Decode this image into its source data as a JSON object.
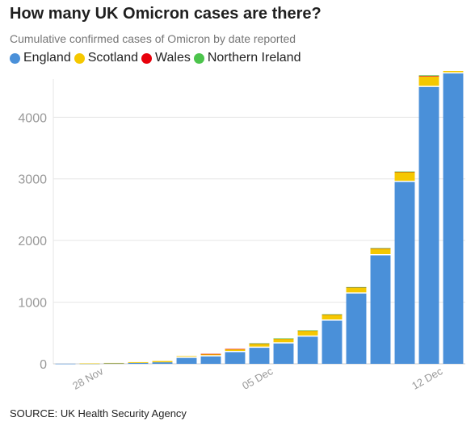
{
  "title": "How many UK Omicron cases are there?",
  "subtitle": "Cumulative confirmed cases of Omicron by date reported",
  "source": "SOURCE: UK Health Security Agency",
  "colors": {
    "England": "#4a90d9",
    "Scotland": "#f5c800",
    "Wales": "#e8000b",
    "Northern Ireland": "#4cc44c",
    "grid": "#e6e6e6"
  },
  "chart_data": {
    "type": "bar",
    "stacked": true,
    "categories": [
      "2021-11-27",
      "2021-11-28",
      "2021-11-29",
      "2021-11-30",
      "2021-12-01",
      "2021-12-02",
      "2021-12-03",
      "2021-12-04",
      "2021-12-05",
      "2021-12-06",
      "2021-12-07",
      "2021-12-08",
      "2021-12-09",
      "2021-12-10",
      "2021-12-11",
      "2021-12-12",
      "2021-12-13"
    ],
    "series": [
      {
        "name": "England",
        "values": [
          2,
          3,
          8,
          15,
          25,
          95,
          120,
          190,
          260,
          330,
          440,
          700,
          1140,
          1760,
          2950,
          4490,
          4710
        ]
      },
      {
        "name": "Scotland",
        "values": [
          0,
          3,
          6,
          12,
          20,
          30,
          40,
          50,
          70,
          80,
          100,
          100,
          100,
          110,
          160,
          170,
          50
        ]
      },
      {
        "name": "Wales",
        "values": [
          0,
          0,
          0,
          0,
          0,
          0,
          1,
          1,
          1,
          1,
          2,
          2,
          2,
          3,
          4,
          10,
          5
        ]
      },
      {
        "name": "Northern Ireland",
        "values": [
          0,
          0,
          0,
          0,
          0,
          0,
          0,
          0,
          1,
          1,
          1,
          2,
          3,
          4,
          5,
          10,
          5
        ]
      }
    ],
    "yticks": [
      0,
      1000,
      2000,
      3000,
      4000
    ],
    "ylim": [
      0,
      4750
    ],
    "xtick_labels": [
      {
        "index": 1,
        "label": "28 Nov"
      },
      {
        "index": 8,
        "label": "05 Dec"
      },
      {
        "index": 15,
        "label": "12 Dec"
      }
    ],
    "legend_position": "top-left",
    "grid": true,
    "xlabel": "",
    "ylabel": ""
  }
}
